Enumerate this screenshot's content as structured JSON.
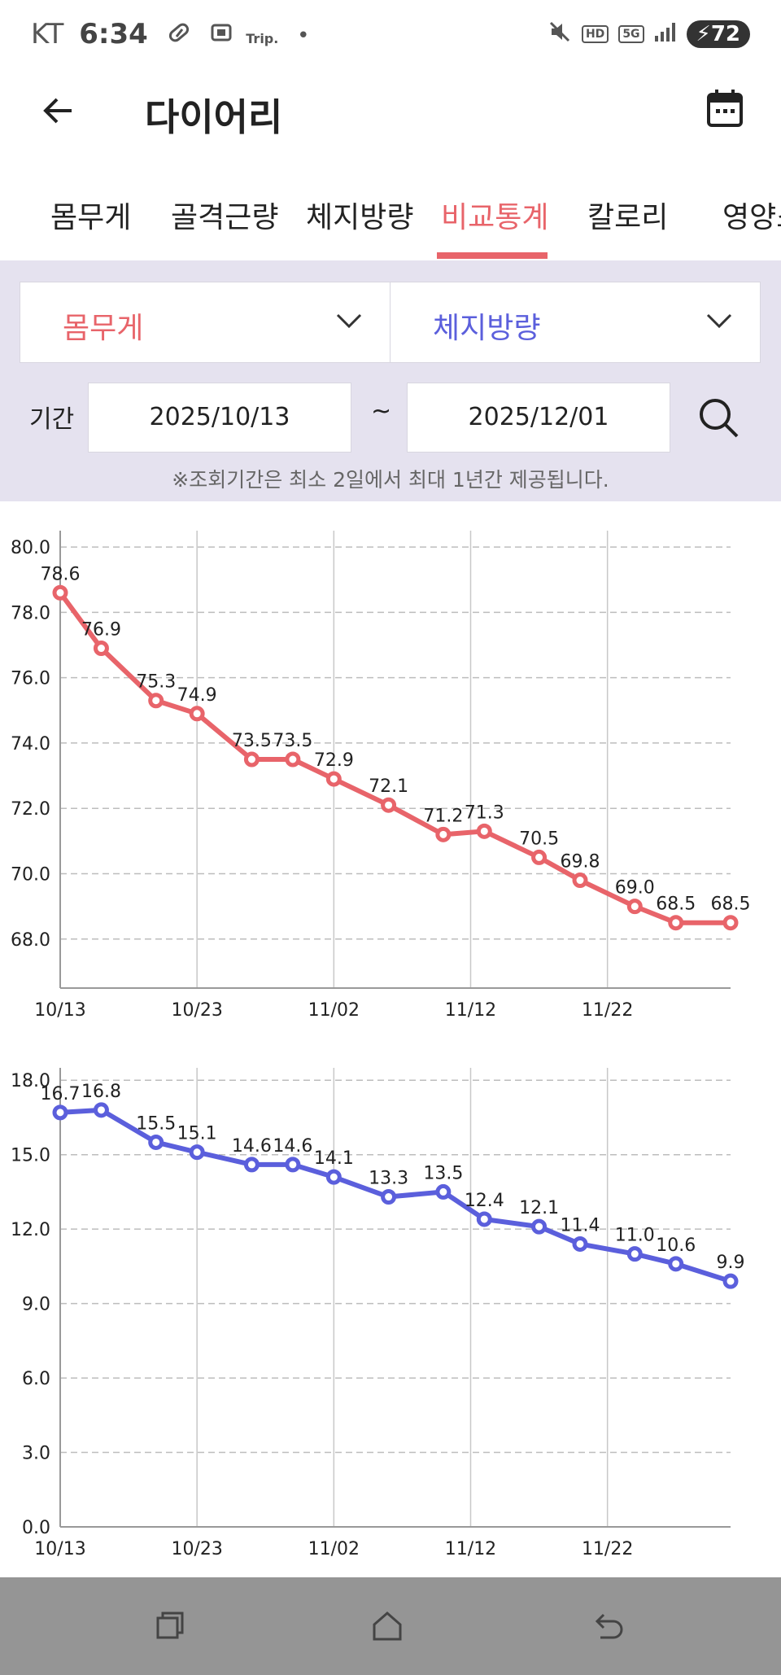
{
  "status_bar": {
    "carrier": "KT",
    "time": "6:34",
    "trip_label": "Trip.",
    "hd_label": "HD",
    "net_label": "5G",
    "battery": "72"
  },
  "header": {
    "title": "다이어리"
  },
  "tabs": [
    {
      "label": "몸무게"
    },
    {
      "label": "골격근량"
    },
    {
      "label": "체지방량"
    },
    {
      "label": "비교통계",
      "active": true
    },
    {
      "label": "칼로리"
    },
    {
      "label": "영양소"
    }
  ],
  "filter": {
    "metric_a": "몸무게",
    "metric_b": "체지방량",
    "period_label": "기간",
    "start_date": "2025/10/13",
    "separator": "~",
    "end_date": "2025/12/01",
    "notice": "※조회기간은 최소 2일에서 최대 1년간 제공됩니다."
  },
  "colors": {
    "accent_red": "#e8646a",
    "accent_blue": "#5b5fdc",
    "filter_bg": "#e5e2ef"
  },
  "chart_data": [
    {
      "type": "line",
      "series": [
        {
          "values": [
            78.6,
            76.9,
            75.3,
            74.9,
            73.5,
            73.5,
            72.9,
            72.1,
            71.2,
            71.3,
            70.5,
            69.8,
            69.0,
            68.5,
            68.5
          ]
        }
      ],
      "x": [
        "2025-10-13",
        "2025-10-16",
        "2025-10-20",
        "2025-10-23",
        "2025-10-27",
        "2025-10-30",
        "2025-11-02",
        "2025-11-06",
        "2025-11-10",
        "2025-11-13",
        "2025-11-17",
        "2025-11-20",
        "2025-11-24",
        "2025-11-27",
        "2025-12-01"
      ],
      "labels": [
        "78.6",
        "76.9",
        "75.3",
        "74.9",
        "73.5",
        "73.5",
        "72.9",
        "72.1",
        "71.2",
        "71.3",
        "70.5",
        "69.8",
        "69.0",
        "68.5",
        "68.5"
      ],
      "x_ticks": [
        "10/13",
        "10/23",
        "11/02",
        "11/12",
        "11/22"
      ],
      "x_tick_dates": [
        "2025-10-13",
        "2025-10-23",
        "2025-11-02",
        "2025-11-12",
        "2025-11-22"
      ],
      "y_ticks": [
        "68.0",
        "70.0",
        "72.0",
        "74.0",
        "76.0",
        "78.0",
        "80.0"
      ],
      "ylim": [
        66.5,
        80.5
      ],
      "xlim": [
        "2025-10-13",
        "2025-12-01"
      ],
      "color": "#e8646a",
      "grid": true
    },
    {
      "type": "line",
      "series": [
        {
          "values": [
            16.7,
            16.8,
            15.5,
            15.1,
            14.6,
            14.6,
            14.1,
            13.3,
            13.5,
            12.4,
            12.1,
            11.4,
            11.0,
            10.6,
            9.9
          ]
        }
      ],
      "x": [
        "2025-10-13",
        "2025-10-16",
        "2025-10-20",
        "2025-10-23",
        "2025-10-27",
        "2025-10-30",
        "2025-11-02",
        "2025-11-06",
        "2025-11-10",
        "2025-11-13",
        "2025-11-17",
        "2025-11-20",
        "2025-11-24",
        "2025-11-27",
        "2025-12-01"
      ],
      "labels": [
        "16.7",
        "16.8",
        "15.5",
        "15.1",
        "14.6",
        "14.6",
        "14.1",
        "13.3",
        "13.5",
        "12.4",
        "12.1",
        "11.4",
        "11.0",
        "10.6",
        "9.9"
      ],
      "x_ticks": [
        "10/13",
        "10/23",
        "11/02",
        "11/12",
        "11/22"
      ],
      "x_tick_dates": [
        "2025-10-13",
        "2025-10-23",
        "2025-11-02",
        "2025-11-12",
        "2025-11-22"
      ],
      "y_ticks": [
        "0.0",
        "3.0",
        "6.0",
        "9.0",
        "12.0",
        "15.0",
        "18.0"
      ],
      "ylim": [
        0,
        18.5
      ],
      "xlim": [
        "2025-10-13",
        "2025-12-01"
      ],
      "color": "#5b5fdc",
      "grid": true
    }
  ]
}
